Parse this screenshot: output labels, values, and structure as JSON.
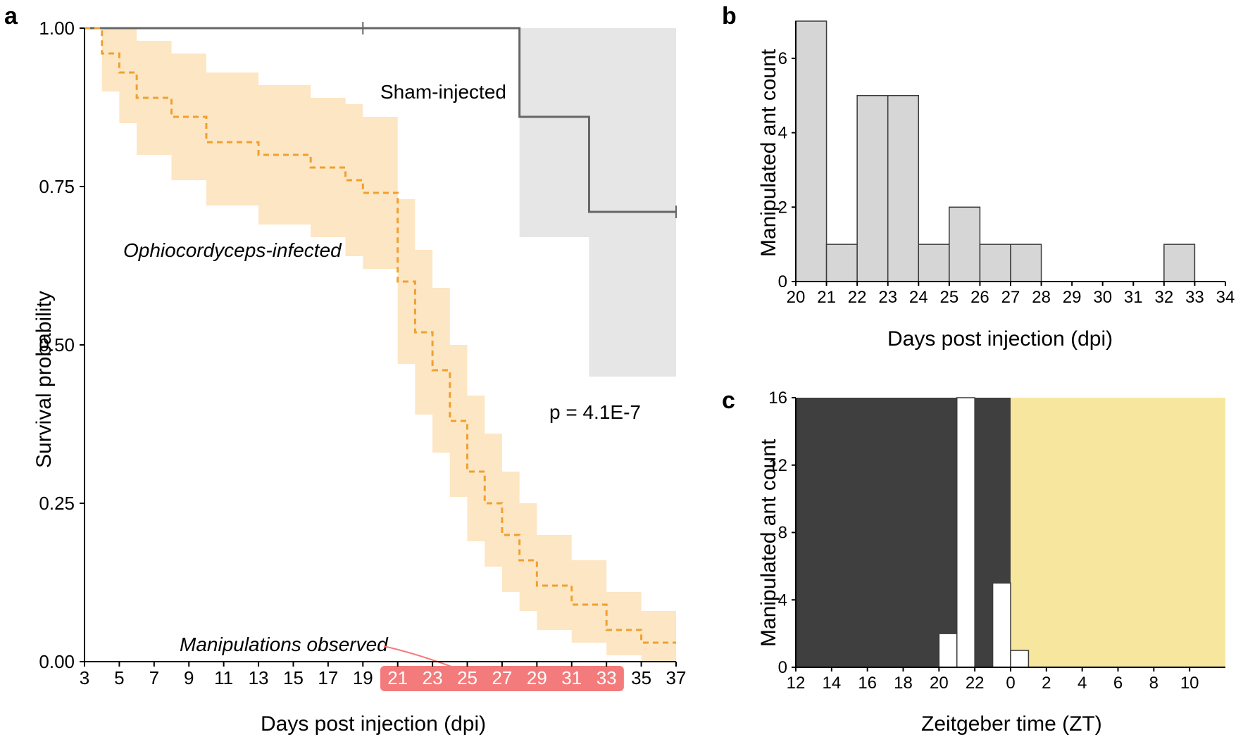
{
  "panel_a": {
    "label": "a",
    "type": "survival-curve",
    "x_title": "Days post injection (dpi)",
    "y_title": "Survival probability",
    "x_ticks": [
      3,
      5,
      7,
      9,
      11,
      13,
      15,
      17,
      19,
      21,
      23,
      25,
      27,
      29,
      31,
      33,
      35,
      37
    ],
    "y_ticks": [
      0.0,
      0.25,
      0.5,
      0.75,
      1.0
    ],
    "xlim": [
      3,
      37
    ],
    "ylim": [
      0,
      1
    ],
    "legend_sham": "Sham-injected",
    "legend_inf": "Ophiocordyceps-infected",
    "p_text": "p = 4.1E-7",
    "manip_label": "Manipulations observed",
    "manip_window": [
      21,
      33
    ],
    "sham": {
      "line_color": "#666666",
      "ci_color": "#e6e6e6",
      "points": [
        [
          3,
          1.0
        ],
        [
          28,
          1.0
        ],
        [
          28,
          0.86
        ],
        [
          32,
          0.86
        ],
        [
          32,
          0.71
        ],
        [
          37,
          0.71
        ]
      ],
      "ci_lower": [
        [
          3,
          1.0
        ],
        [
          28,
          1.0
        ],
        [
          28,
          0.67
        ],
        [
          32,
          0.67
        ],
        [
          32,
          0.45
        ],
        [
          37,
          0.45
        ]
      ],
      "ci_upper": [
        [
          3,
          1.0
        ],
        [
          37,
          1.0
        ]
      ],
      "censor_x": [
        19,
        37
      ]
    },
    "inf": {
      "line_color": "#f0a030",
      "ci_color": "#fde6c3",
      "points": [
        [
          3,
          1.0
        ],
        [
          4,
          1.0
        ],
        [
          4,
          0.96
        ],
        [
          5,
          0.96
        ],
        [
          5,
          0.93
        ],
        [
          6,
          0.93
        ],
        [
          6,
          0.89
        ],
        [
          8,
          0.89
        ],
        [
          8,
          0.86
        ],
        [
          10,
          0.86
        ],
        [
          10,
          0.82
        ],
        [
          13,
          0.82
        ],
        [
          13,
          0.8
        ],
        [
          16,
          0.8
        ],
        [
          16,
          0.78
        ],
        [
          18,
          0.78
        ],
        [
          18,
          0.76
        ],
        [
          19,
          0.76
        ],
        [
          19,
          0.74
        ],
        [
          21,
          0.74
        ],
        [
          21,
          0.6
        ],
        [
          22,
          0.6
        ],
        [
          22,
          0.52
        ],
        [
          23,
          0.52
        ],
        [
          23,
          0.46
        ],
        [
          24,
          0.46
        ],
        [
          24,
          0.38
        ],
        [
          25,
          0.38
        ],
        [
          25,
          0.3
        ],
        [
          26,
          0.3
        ],
        [
          26,
          0.25
        ],
        [
          27,
          0.25
        ],
        [
          27,
          0.2
        ],
        [
          28,
          0.2
        ],
        [
          28,
          0.16
        ],
        [
          29,
          0.16
        ],
        [
          29,
          0.12
        ],
        [
          31,
          0.12
        ],
        [
          31,
          0.09
        ],
        [
          33,
          0.09
        ],
        [
          33,
          0.05
        ],
        [
          35,
          0.05
        ],
        [
          35,
          0.03
        ],
        [
          37,
          0.03
        ]
      ],
      "ci_lower": [
        [
          3,
          1.0
        ],
        [
          4,
          1.0
        ],
        [
          4,
          0.9
        ],
        [
          5,
          0.9
        ],
        [
          5,
          0.85
        ],
        [
          6,
          0.85
        ],
        [
          6,
          0.8
        ],
        [
          8,
          0.8
        ],
        [
          8,
          0.76
        ],
        [
          10,
          0.76
        ],
        [
          10,
          0.72
        ],
        [
          13,
          0.72
        ],
        [
          13,
          0.69
        ],
        [
          16,
          0.69
        ],
        [
          16,
          0.67
        ],
        [
          18,
          0.67
        ],
        [
          18,
          0.64
        ],
        [
          19,
          0.64
        ],
        [
          19,
          0.62
        ],
        [
          21,
          0.62
        ],
        [
          21,
          0.47
        ],
        [
          22,
          0.47
        ],
        [
          22,
          0.39
        ],
        [
          23,
          0.39
        ],
        [
          23,
          0.33
        ],
        [
          24,
          0.33
        ],
        [
          24,
          0.26
        ],
        [
          25,
          0.26
        ],
        [
          25,
          0.19
        ],
        [
          26,
          0.19
        ],
        [
          26,
          0.15
        ],
        [
          27,
          0.15
        ],
        [
          27,
          0.11
        ],
        [
          28,
          0.11
        ],
        [
          28,
          0.08
        ],
        [
          29,
          0.08
        ],
        [
          29,
          0.05
        ],
        [
          31,
          0.05
        ],
        [
          31,
          0.03
        ],
        [
          33,
          0.03
        ],
        [
          33,
          0.01
        ],
        [
          35,
          0.01
        ],
        [
          35,
          0.0
        ],
        [
          37,
          0.0
        ]
      ],
      "ci_upper": [
        [
          3,
          1.0
        ],
        [
          6,
          1.0
        ],
        [
          6,
          0.98
        ],
        [
          8,
          0.98
        ],
        [
          8,
          0.96
        ],
        [
          10,
          0.96
        ],
        [
          10,
          0.93
        ],
        [
          13,
          0.93
        ],
        [
          13,
          0.91
        ],
        [
          16,
          0.91
        ],
        [
          16,
          0.89
        ],
        [
          18,
          0.89
        ],
        [
          18,
          0.88
        ],
        [
          19,
          0.88
        ],
        [
          19,
          0.86
        ],
        [
          21,
          0.86
        ],
        [
          21,
          0.73
        ],
        [
          22,
          0.73
        ],
        [
          22,
          0.65
        ],
        [
          23,
          0.65
        ],
        [
          23,
          0.59
        ],
        [
          24,
          0.59
        ],
        [
          24,
          0.5
        ],
        [
          25,
          0.5
        ],
        [
          25,
          0.42
        ],
        [
          26,
          0.42
        ],
        [
          26,
          0.36
        ],
        [
          27,
          0.36
        ],
        [
          27,
          0.3
        ],
        [
          28,
          0.3
        ],
        [
          28,
          0.25
        ],
        [
          29,
          0.25
        ],
        [
          29,
          0.2
        ],
        [
          31,
          0.2
        ],
        [
          31,
          0.16
        ],
        [
          33,
          0.16
        ],
        [
          33,
          0.11
        ],
        [
          35,
          0.11
        ],
        [
          35,
          0.08
        ],
        [
          37,
          0.08
        ]
      ]
    },
    "highlight_color": "#f47b7b"
  },
  "panel_b": {
    "label": "b",
    "type": "histogram",
    "x_title": "Days post injection (dpi)",
    "y_title": "Manipulated ant count",
    "x_ticks": [
      20,
      21,
      22,
      23,
      24,
      25,
      26,
      27,
      28,
      29,
      30,
      31,
      32,
      33,
      34
    ],
    "y_ticks": [
      0,
      2,
      4,
      6
    ],
    "ylim": [
      0,
      7
    ],
    "bar_color": "#d6d6d6",
    "bar_stroke": "#3a3a3a",
    "bars": [
      [
        20,
        7
      ],
      [
        21,
        1
      ],
      [
        22,
        5
      ],
      [
        23,
        5
      ],
      [
        24,
        1
      ],
      [
        25,
        2
      ],
      [
        26,
        1
      ],
      [
        27,
        1
      ],
      [
        32,
        1
      ]
    ]
  },
  "panel_c": {
    "label": "c",
    "type": "histogram",
    "x_title": "Zeitgeber time (ZT)",
    "y_title": "Manipulated ant count",
    "x_ticks": [
      12,
      14,
      16,
      18,
      20,
      22,
      0,
      2,
      4,
      6,
      8,
      10
    ],
    "y_ticks": [
      0,
      4,
      8,
      12,
      16
    ],
    "ylim": [
      0,
      16
    ],
    "dark_color": "#3f3f3f",
    "light_color": "#f7e79e",
    "bar_color": "#ffffff",
    "bar_stroke": "#3a3a3a",
    "dark_hours": [
      12,
      24
    ],
    "bars": [
      [
        20,
        2
      ],
      [
        21,
        16
      ],
      [
        23,
        5
      ],
      [
        0,
        1
      ]
    ]
  },
  "fonts": {
    "axis_title_pt": 30,
    "tick_pt": 26,
    "panel_label_pt": 34,
    "anno_pt": 28
  },
  "colors": {
    "bg": "#ffffff",
    "text": "#000000"
  }
}
